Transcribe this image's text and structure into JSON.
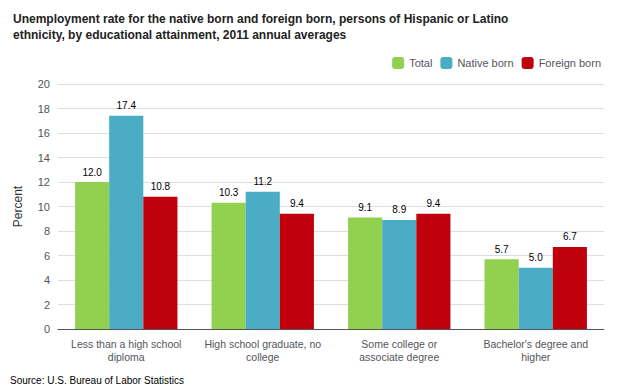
{
  "chart_data": {
    "type": "bar",
    "title": "Unemployment rate for the native born and foreign born, persons of Hispanic or Latino\nethnicity, by educational attainment, 2011 annual averages",
    "categories": [
      "Less than a high school\ndiploma",
      "High school graduate, no\ncollege",
      "Some college or\nassociate degree",
      "Bachelor's degree and\nhigher"
    ],
    "series": [
      {
        "name": "Total",
        "color": "#92d050",
        "values": [
          12.0,
          10.3,
          9.1,
          5.7
        ],
        "value_labels": [
          "12.0",
          "10.3",
          "9.1",
          "5.7"
        ]
      },
      {
        "name": "Native born",
        "color": "#4bacc6",
        "values": [
          17.4,
          11.2,
          8.9,
          5.0
        ],
        "value_labels": [
          "17.4",
          "11.2",
          "8.9",
          "5.0"
        ]
      },
      {
        "name": "Foreign born",
        "color": "#c0000c",
        "values": [
          10.8,
          9.4,
          9.4,
          6.7
        ],
        "value_labels": [
          "10.8",
          "9.4",
          "9.4",
          "6.7"
        ]
      }
    ],
    "ylabel": "Percent",
    "ylim": [
      0,
      20
    ],
    "yticks": [
      0,
      2,
      4,
      6,
      8,
      10,
      12,
      14,
      16,
      18,
      20
    ],
    "grid": true,
    "legend": "upper right",
    "data_labels": true,
    "annotations": [
      "Source: U.S. Bureau of Labor Statistics"
    ]
  }
}
